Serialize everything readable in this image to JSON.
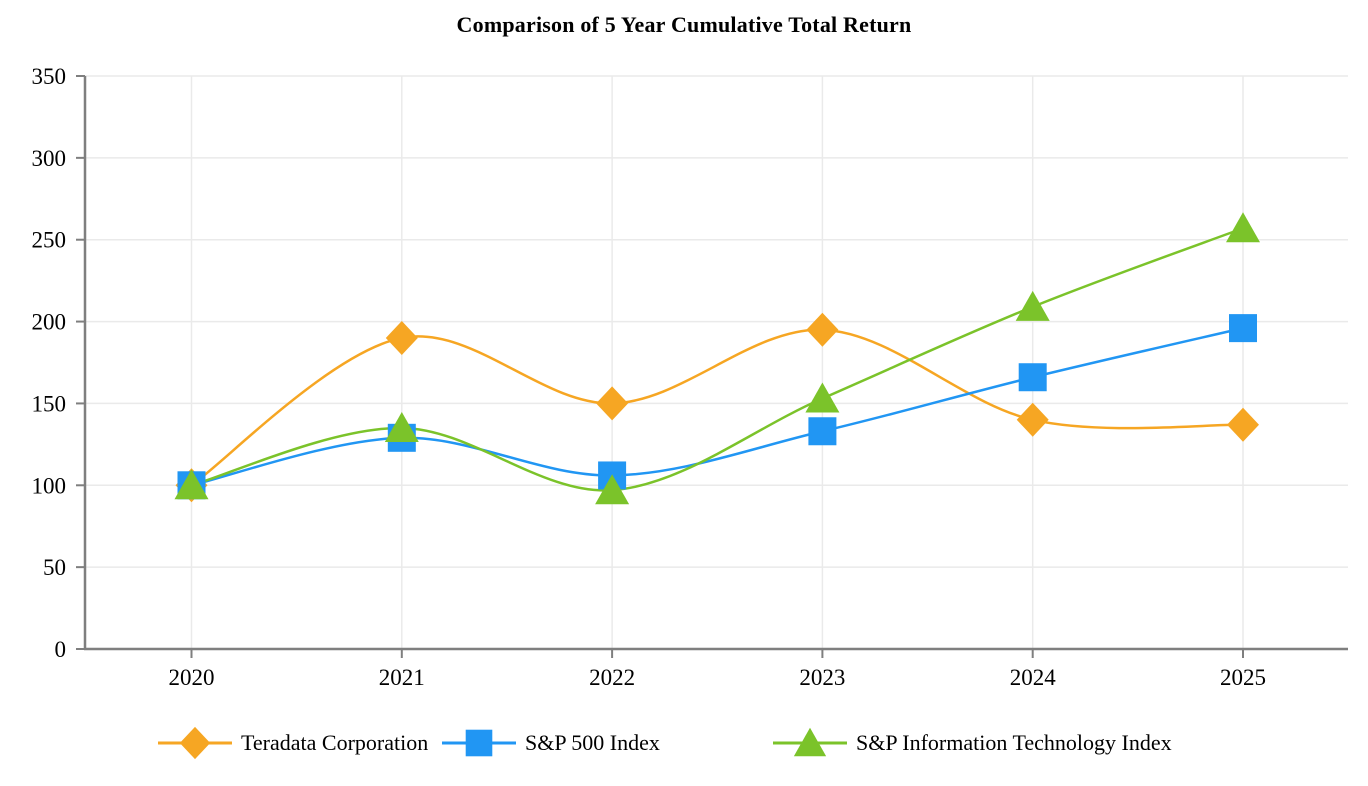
{
  "title": "Comparison of 5 Year Cumulative Total Return",
  "colors": {
    "axis": "#7F7F7F",
    "grid": "#EAEAEA",
    "text": "#000000",
    "background": "#FFFFFF",
    "teradata_orange": "#F6A623",
    "sp500_blue": "#2196F3",
    "spit_green": "#7BC32A"
  },
  "chart_data": {
    "type": "line",
    "title": "Comparison of 5 Year Cumulative Total Return",
    "x": [
      "2020",
      "2021",
      "2022",
      "2023",
      "2024",
      "2025"
    ],
    "xlabel": "",
    "ylabel": "",
    "ylim": [
      0,
      350
    ],
    "yticks": [
      0,
      50,
      100,
      150,
      200,
      250,
      300,
      350
    ],
    "grid": true,
    "line_style": "smooth",
    "legend_position": "bottom",
    "series": [
      {
        "name": "Teradata Corporation",
        "marker": "diamond",
        "color": "#F6A623",
        "values": [
          100,
          190,
          150,
          195,
          140,
          137
        ]
      },
      {
        "name": "S&P 500 Index",
        "marker": "square",
        "color": "#2196F3",
        "values": [
          100,
          129,
          106,
          133,
          166,
          196
        ]
      },
      {
        "name": "S&P Information Technology Index",
        "marker": "triangle",
        "color": "#7BC32A",
        "values": [
          100,
          135,
          97,
          153,
          209,
          257
        ]
      }
    ]
  }
}
